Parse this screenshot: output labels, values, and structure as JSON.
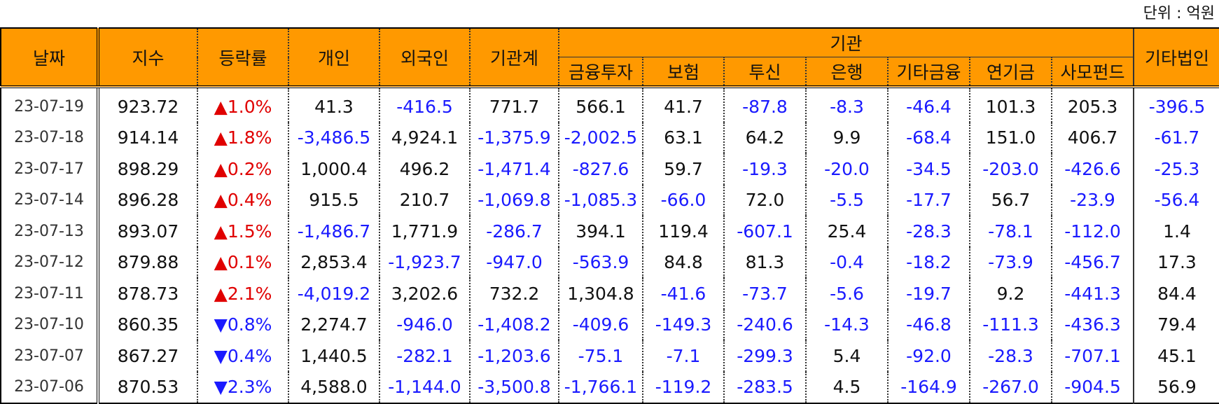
{
  "unit": "단위 : 억원",
  "table": {
    "columns_before": [
      "날짜",
      "지수",
      "등락률",
      "개인",
      "외국인",
      "기관계"
    ],
    "group": {
      "label": "기관",
      "columns": [
        "금융투자",
        "보험",
        "투신",
        "은행",
        "기타금융",
        "연기금",
        "사모펀드"
      ]
    },
    "columns_after": [
      "기타법인"
    ],
    "rows": [
      [
        "23-07-19",
        "923.72",
        "▲1.0%",
        "41.3",
        "-416.5",
        "771.7",
        "566.1",
        "41.7",
        "-87.8",
        "-8.3",
        "-46.4",
        "101.3",
        "205.3",
        "-396.5"
      ],
      [
        "23-07-18",
        "914.14",
        "▲1.8%",
        "-3,486.5",
        "4,924.1",
        "-1,375.9",
        "-2,002.5",
        "63.1",
        "64.2",
        "9.9",
        "-68.4",
        "151.0",
        "406.7",
        "-61.7"
      ],
      [
        "23-07-17",
        "898.29",
        "▲0.2%",
        "1,000.4",
        "496.2",
        "-1,471.4",
        "-827.6",
        "59.7",
        "-19.3",
        "-20.0",
        "-34.5",
        "-203.0",
        "-426.6",
        "-25.3"
      ],
      [
        "23-07-14",
        "896.28",
        "▲0.4%",
        "915.5",
        "210.7",
        "-1,069.8",
        "-1,085.3",
        "-66.0",
        "72.0",
        "-5.5",
        "-17.7",
        "56.7",
        "-23.9",
        "-56.4"
      ],
      [
        "23-07-13",
        "893.07",
        "▲1.5%",
        "-1,486.7",
        "1,771.9",
        "-286.7",
        "394.1",
        "119.4",
        "-607.1",
        "25.4",
        "-28.3",
        "-78.1",
        "-112.0",
        "1.4"
      ],
      [
        "23-07-12",
        "879.88",
        "▲0.1%",
        "2,853.4",
        "-1,923.7",
        "-947.0",
        "-563.9",
        "84.8",
        "81.3",
        "-0.4",
        "-18.2",
        "-73.9",
        "-456.7",
        "17.3"
      ],
      [
        "23-07-11",
        "878.73",
        "▲2.1%",
        "-4,019.2",
        "3,202.6",
        "732.2",
        "1,304.8",
        "-41.6",
        "-73.7",
        "-5.6",
        "-19.7",
        "9.2",
        "-441.3",
        "84.4"
      ],
      [
        "23-07-10",
        "860.35",
        "▼0.8%",
        "2,274.7",
        "-946.0",
        "-1,408.2",
        "-409.6",
        "-149.3",
        "-240.6",
        "-14.3",
        "-46.8",
        "-111.3",
        "-436.3",
        "79.4"
      ],
      [
        "23-07-07",
        "867.27",
        "▼0.4%",
        "1,440.5",
        "-282.1",
        "-1,203.6",
        "-75.1",
        "-7.1",
        "-299.3",
        "5.4",
        "-92.0",
        "-28.3",
        "-707.1",
        "45.1"
      ],
      [
        "23-07-06",
        "870.53",
        "▼2.3%",
        "4,588.0",
        "-1,144.0",
        "-3,500.8",
        "-1,766.1",
        "-119.2",
        "-283.5",
        "4.5",
        "-164.9",
        "-267.0",
        "-904.5",
        "56.9"
      ]
    ]
  }
}
